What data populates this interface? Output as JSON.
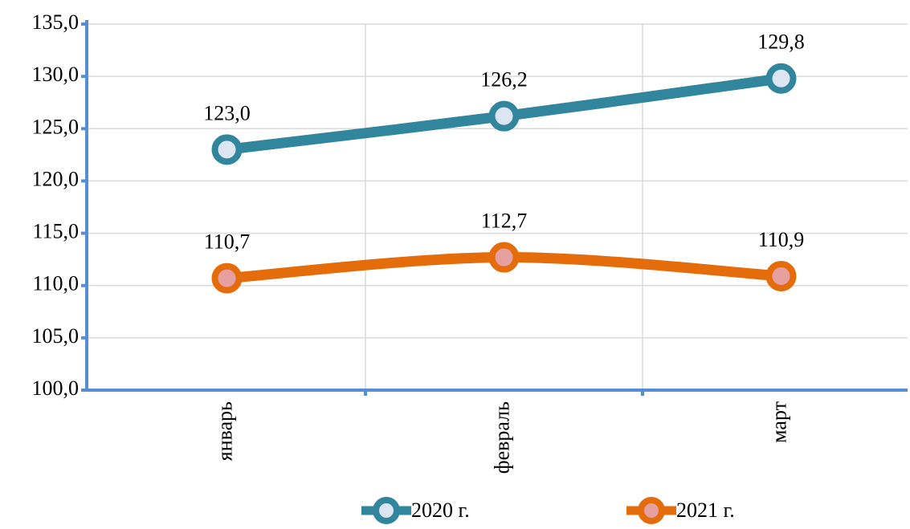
{
  "chart_data": {
    "type": "line",
    "categories": [
      "январь",
      "февраль",
      "март"
    ],
    "series": [
      {
        "name": "2020 г.",
        "color": "#31859c",
        "marker_fill": "#dce6f2",
        "values": [
          123.0,
          126.2,
          129.8
        ],
        "value_labels": [
          "123,0",
          "126,2",
          "129,8"
        ]
      },
      {
        "name": "2021 г.",
        "color": "#e46c0a",
        "marker_fill": "#e6a0a0",
        "values": [
          110.7,
          112.7,
          110.9
        ],
        "value_labels": [
          "110,7",
          "112,7",
          "110,9"
        ]
      }
    ],
    "ylim": [
      100,
      135
    ],
    "yticks": [
      {
        "value": 100,
        "label": "100,0"
      },
      {
        "value": 105,
        "label": "105,0"
      },
      {
        "value": 110,
        "label": "110,0"
      },
      {
        "value": 115,
        "label": "115,0"
      },
      {
        "value": 120,
        "label": "120,0"
      },
      {
        "value": 125,
        "label": "125,0"
      },
      {
        "value": 130,
        "label": "130,0"
      },
      {
        "value": 135,
        "label": "135,0"
      }
    ],
    "grid": true,
    "smooth": true,
    "legend": "bottom"
  }
}
